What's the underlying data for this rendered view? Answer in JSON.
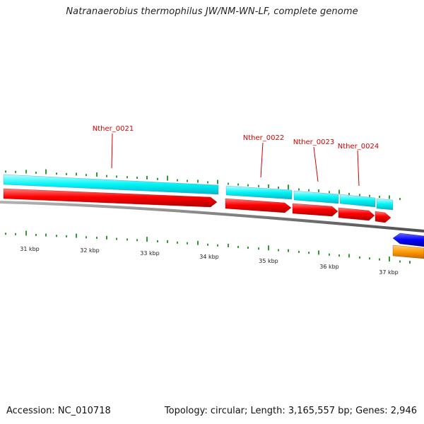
{
  "title": "Natranaerobius thermophilus JW/NM-WN-LF, complete genome",
  "footer": {
    "accession": "Accession: NC_010718",
    "summary": "Topology: circular; Length: 3,165,557 bp; Genes: 2,946"
  },
  "colors": {
    "cds_feature": "#ff0000",
    "gene_feature": "#00ffff",
    "minus_strand_feature": "#0000ff",
    "other_feature": "#ff9900",
    "backbone": "#808080",
    "gc_skew_tick": "#008000",
    "label": "#d40000"
  },
  "gene_labels": [
    "Nther_0021",
    "Nther_0022",
    "Nther_0023",
    "Nther_0024"
  ],
  "kbp_labels": [
    "31 kbp",
    "32 kbp",
    "33 kbp",
    "34 kbp",
    "35 kbp",
    "36 kbp",
    "37 kbp"
  ]
}
